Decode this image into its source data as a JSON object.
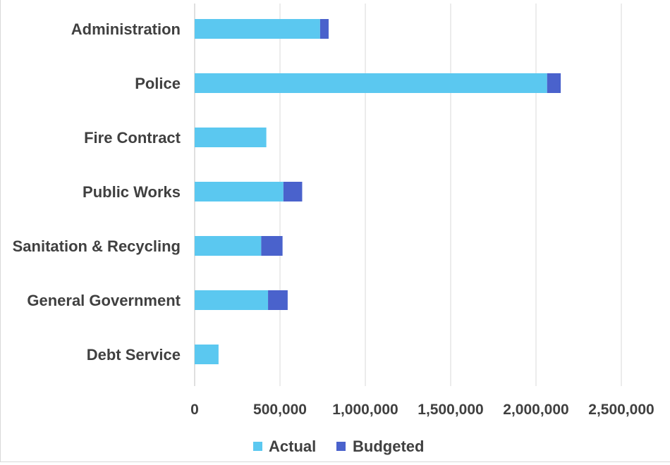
{
  "chart_data": {
    "type": "bar",
    "orientation": "horizontal",
    "stacked": true,
    "categories": [
      "Administration",
      "Police",
      "Fire Contract",
      "Public Works",
      "Sanitation & Recycling",
      "General Government",
      "Debt Service"
    ],
    "series": [
      {
        "name": "Actual",
        "color": "#5bc8f0",
        "values": [
          735000,
          2065000,
          420000,
          520000,
          390000,
          430000,
          140000
        ]
      },
      {
        "name": "Budgeted",
        "color": "#4a62cc",
        "values": [
          50000,
          80000,
          0,
          110000,
          125000,
          115000,
          0
        ]
      }
    ],
    "xlim": [
      0,
      2500000
    ],
    "xticks": [
      0,
      500000,
      1000000,
      1500000,
      2000000,
      2500000
    ],
    "xtick_labels": [
      "0",
      "500,000",
      "1,000,000",
      "1,500,000",
      "2,000,000",
      "2,500,000"
    ],
    "grid": "vertical",
    "legend_position": "bottom",
    "title": "",
    "xlabel": "",
    "ylabel": ""
  }
}
